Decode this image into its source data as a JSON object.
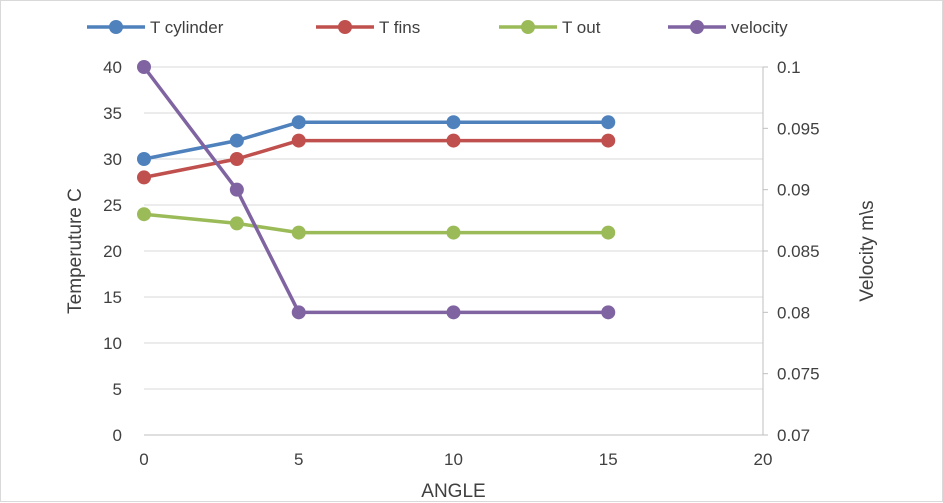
{
  "chart_data": {
    "type": "line",
    "xlabel": "ANGLE",
    "ylabel_left": "Temperuture C",
    "ylabel_right": "Velocity m\\s",
    "xlim": [
      0,
      20
    ],
    "ylim_left": [
      0,
      40
    ],
    "ylim_right": [
      0.07,
      0.1
    ],
    "x_ticks": [
      "0",
      "5",
      "10",
      "15",
      "20"
    ],
    "y_left_ticks": [
      "0",
      "5",
      "10",
      "15",
      "20",
      "25",
      "30",
      "35",
      "40"
    ],
    "y_right_ticks": [
      "0.07",
      "0.075",
      "0.08",
      "0.085",
      "0.09",
      "0.095",
      "0.1"
    ],
    "grid": "horizontal",
    "legend_position": "top",
    "series": [
      {
        "name": "T cylinder",
        "axis": "left",
        "color": "#4f81bd",
        "x": [
          0,
          3,
          5,
          10,
          15
        ],
        "values": [
          30,
          32,
          34,
          34,
          34
        ]
      },
      {
        "name": "T fins",
        "axis": "left",
        "color": "#c0504d",
        "x": [
          0,
          3,
          5,
          10,
          15
        ],
        "values": [
          28,
          30,
          32,
          32,
          32
        ]
      },
      {
        "name": "T out",
        "axis": "left",
        "color": "#9bbb59",
        "x": [
          0,
          3,
          5,
          10,
          15
        ],
        "values": [
          24,
          23,
          22,
          22,
          22
        ]
      },
      {
        "name": "velocity",
        "axis": "right",
        "color": "#8064a2",
        "x": [
          0,
          3,
          5,
          10,
          15
        ],
        "values": [
          0.1,
          0.09,
          0.08,
          0.08,
          0.08
        ]
      }
    ]
  }
}
